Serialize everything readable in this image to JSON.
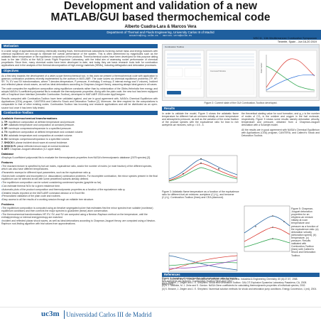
{
  "header": {
    "title_line1": "Development and validation of a new",
    "title_line2": "MATLAB/GUI based thermochemical code",
    "authors": "Alberto Cuadra-Lara & Marcos Vera",
    "department": "Department of Thermal and Fluids Engineering, University Carlos III of Madrid",
    "emails": "acuadra@ing.uc3m.es · marcos.vera@uc3m.es",
    "conference_line1": "MSC11, 11th Mediterranean Combustion Symposium",
    "conference_line2": "Tenerife, Spain - Jun 16-20 2019"
  },
  "left": {
    "motivation_head": "Motivation",
    "motivation_p1": "In a wide range of applications involving chemically reacting flows, thermochemical calculations involving overall mass and energy balances with chemical equilibrium are enough to estimate the overall performance of the system. This is often determined by magnitudes such as the adiabatic flame temperature or the equilibrium composition of the products. Thermochemical codes have been developed for this purpose dating back to the late 1940's at the NACA Lewis Flight Propulsion Laboratory, with the initial aim of assessing rocket performance of chemical propellants. Since then, many chemical codes have been developed to date, and today they are basic research tools both for combustion applications and in the analysis of the thermal decomposition of high-energy materials (HEMs), including deflagration and detonation processes.",
    "objectives_head": "Objectives",
    "objectives_p1": "As a first step towards the development of a wider-scope thermochemical tool, in this work we present a thermochemical code with application to gaseous combustion problems recently implemented by the authors in MATLAB®. The code solves six chemical equilibrium problems (TP, HP, SP, TV, EV and SV transformations, where T denotes temperature, P pressure, H enthalpy, S entropy, E internal energy and V volume), incident and reflected planar shock waves, as well as ideal detonations according to Chapman-Jouguet theory, assuming always ideal gases in all cases.",
    "objectives_p2": "The code computes the equilibrium composition using equilibrium constants rather than by minimization of the Gibbs-Helmholtz free energy, and adopts NASA's 9-coefficient polynomial fits to evaluate the thermodynamic properties. Along with the plain code, the new tool has been equipped with a Graphical User Interface (hereafter Combustion-Toolbox), developed in MATLAB® 2018 under AppDesigner.",
    "objectives_p3": "Results computed with Combustion-Toolbox have been validated against, and are in good agreement with, NASA's Chemical Equilibrium with Applications (CEA) program, CANTERA and Caltech's Shock and Detonation Toolbox [2]. Moreover, the time required for the computations is comparable to that of other existing codes. Combustion-Toolbox has incoming and research applications and will be distributed as an open-source tool once it has been fully tested.",
    "features_head": "Combustion-Toolbox",
    "available_head": "Available thermochemical transformations",
    "transforms": [
      {
        "k": "1. TP:",
        "v": "equilibrium composition at defined temperature and pressure."
      },
      {
        "k": "2. HP:",
        "v": "adiabatic temperature and composition at constant pressure."
      },
      {
        "k": "3. SP:",
        "v": "isentropic compression/expansion to a specified pressure."
      },
      {
        "k": "4. TV:",
        "v": "equilibrium composition at defined temperature and constant volume."
      },
      {
        "k": "5. EV:",
        "v": "adiabatic temperature and composition at constant volume."
      },
      {
        "k": "6. SV:",
        "v": "isentropic compression/expansion to a specified volume."
      },
      {
        "k": "7. SHOCK I:",
        "v": "planar incident shock wave at normal incidence."
      },
      {
        "k": "8. SHOCK R:",
        "v": "planar reflected shock wave at normal incidence."
      },
      {
        "k": "9. DET:",
        "v": "Chapman-Jouguet detonation (CJ upper state)."
      }
    ],
    "database_head": "Database",
    "database_items": [
      "Employs 9-coefficient polynomial fits to evaluate the thermodynamic properties from NASA's thermodynamic database (2075 species) [3]."
    ],
    "features_sub": "Features",
    "feature_items": [
      "The reactant mixture is specified by fuel-air moles, equivalence ratio, and/or the number of moles (or mole fraction) of the different species, which can also have different temperatures.",
      "Parametric sweeps for different input parameters, such as the equivalence ratio φ.",
      "Solves both complete and incomplete (i.e. dissociation) combustion problems. For incomplete combustion, the minor species present in the final equilibrium can be selected at will with some predefined subsets already defined.",
      "The equilibrium composition can be solved considering condensed species (graphite so far).",
      "Can estimate thermal NOx for a given residence time.",
      "Automatic plots of the product composition and thermodynamic properties as a function of the equivalence ratio φ.",
      "Detailed results reported on the MATLAB® command window or in Excel file.",
      "Personalized validation of the plain code and routines.",
      "Easy access to all the results of a working session through an editable tree structure."
    ],
    "problems_sub": "Problems",
    "problem_items": [
      "The equilibrium composition is computed using an iterative segregated solver that estimates first the minor species from suitable (nonlinear) equilibrium conditions and then corrects the major species to guarantee (linear) atom conservation.",
      "The thermochemical transformations HP, EV, SV, and SV are computed using a Newton-Raphson method on the temperature, until the enthalpy/entropy or internal energy/entropy are matched.",
      "Incident and reflected planar shock waves, as well as ideal detonations according to Chapman-Jouguet theory, are computed using a Newton-Raphson root-finding algorithm with trial values from approximations."
    ]
  },
  "right": {
    "fig2_caption": "Figure 2: Current state of the GUI Combustion-Toolbox developed.",
    "results_head": "Results",
    "results_p1": "In order to validate the model, Figure 3 shows the adiabatic flame temperature for different fuel-air mixtures initially at room temperature and atmospheric pressure, as well as the variation of the molar fraction of the product species with the equivalence ratio for lean to rich acetylene-air mixtures, with φ = 0.5 - 4.",
    "results_p2": "the theoretical starting value for soot formation, and φ_c is the number of moles of CO₂ in the oxidizer and oxygen in the fuel molecule, respectively. Figure 5 shows some results namely detonation velocity, temperature and pressure, obtained from a Chapman-Jouguet detonation with a Scramjet model.",
    "results_p3": "All the results are in good agreement with NASA's Chemical Equilibrium with Applications (CEA) program, CANTERA, and Caltech's Shock and Detonation Toolbox.",
    "fig3_caption": "Figure 3: Adiabatic flame temperature as a function of the equivalence ratio for different fuel-air mixtures: acetylene (C₂H₂), and benzene (C₆H₆). Combustion-Toolbox (lines) and CEA (diamond).",
    "fig4_caption": "Figure 4: Variation of molar fraction with equivalence ratio for lean to rich acetylene-air mixtures. Combustion-Toolbox (line) and CEA (diamond).",
    "fig5_caption": "Figure 5: Chapman-Jouguet detonation properties for an ethylene-air mixture initially at room temperature and pressure as a function of the equivalence ratio: (a) detonation velocity (detonation speed), (b) temperature, (c) pressure. Results validated with Combustion-Toolbox (lines) with Caltech's Shock and Detonation Toolbox.",
    "references_head": "References",
    "references": [
      "[1] F. J. Zeleznik and S. Gordon. Calculation of complex chemical equilibria. Industrial & Engineering Chemistry, 60 (6):27-57, 1968.",
      "[2] S. Browne, J. Ziegler and J. E. Shepherd. Shock and Detonation Toolbox. GALCIT-Explosion Dynamics Laboratory Pasadena, CA, 2008.",
      "[3] B. J. McBride, M. J. Zehe and S. Gordon. NASA Glenn coefficients for calculating thermodynamic properties of individual species, 2002.",
      "[4] S. Browne, J. Ziegler and J. E. Shepherd. Numerical solution methods for shock and detonation jump conditions. Energy Conversion, 1 (ed), 2004."
    ]
  },
  "footer": {
    "logo": "uc3m",
    "university": "Universidad Carlos III de Madrid"
  },
  "colors": {
    "accent": "#1f5f9e",
    "gui_bg": "#f0f0f0"
  },
  "gui": {
    "title": "Combustion Toolbox",
    "console_text": "Command Window",
    "plot_ylabel": "Molar fraction"
  }
}
